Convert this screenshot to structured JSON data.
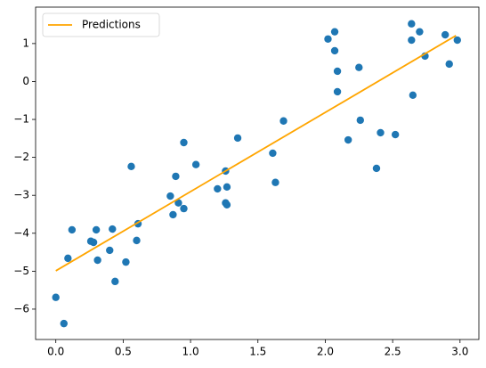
{
  "chart_data": {
    "type": "scatter",
    "legend": "upper left",
    "xlim": [
      -0.15,
      3.14
    ],
    "ylim": [
      -6.8,
      1.96
    ],
    "xticks": [
      {
        "value": 0,
        "label": "0.0"
      },
      {
        "value": 0.5,
        "label": "0.5"
      },
      {
        "value": 1,
        "label": "1.0"
      },
      {
        "value": 1.5,
        "label": "1.5"
      },
      {
        "value": 2,
        "label": "2.0"
      },
      {
        "value": 2.5,
        "label": "2.5"
      },
      {
        "value": 3,
        "label": "3.0"
      }
    ],
    "yticks": [
      {
        "value": -6,
        "label": "−6"
      },
      {
        "value": -5,
        "label": "−5"
      },
      {
        "value": -4,
        "label": "−4"
      },
      {
        "value": -3,
        "label": "−3"
      },
      {
        "value": -2,
        "label": "−2"
      },
      {
        "value": -1,
        "label": "−1"
      },
      0,
      1
    ],
    "series": [
      {
        "type": "scatter",
        "color": "#1f77b4",
        "x": [
          0.0,
          0.06,
          0.09,
          0.12,
          0.26,
          0.28,
          0.3,
          0.31,
          0.4,
          0.42,
          0.44,
          0.52,
          0.56,
          0.6,
          0.61,
          0.85,
          0.87,
          0.89,
          0.91,
          0.95,
          0.95,
          1.04,
          1.2,
          1.26,
          1.26,
          1.27,
          1.27,
          1.35,
          1.61,
          1.63,
          1.69,
          2.02,
          2.07,
          2.07,
          2.09,
          2.09,
          2.17,
          2.25,
          2.26,
          2.38,
          2.41,
          2.52,
          2.64,
          2.64,
          2.65,
          2.7,
          2.74,
          2.89,
          2.92,
          2.98
        ],
        "values": [
          -5.69,
          -6.38,
          -4.66,
          -3.91,
          -4.21,
          -4.24,
          -3.91,
          -4.71,
          -4.45,
          -3.89,
          -5.27,
          -4.76,
          -2.24,
          -4.19,
          -3.75,
          -3.02,
          -3.51,
          -2.5,
          -3.2,
          -3.35,
          -1.61,
          -2.19,
          -2.83,
          -2.36,
          -3.2,
          -3.25,
          -2.78,
          -1.49,
          -1.89,
          -2.66,
          -1.04,
          1.12,
          1.31,
          0.81,
          0.27,
          -0.27,
          -1.54,
          0.37,
          -1.02,
          -2.29,
          -1.35,
          -1.4,
          1.52,
          1.09,
          -0.36,
          1.31,
          0.67,
          1.23,
          0.46,
          1.09
        ]
      },
      {
        "type": "line",
        "name": "Predictions",
        "color": "#ffa500",
        "x": [
          0.0,
          2.97
        ],
        "values": [
          -4.99,
          1.21
        ]
      }
    ]
  }
}
